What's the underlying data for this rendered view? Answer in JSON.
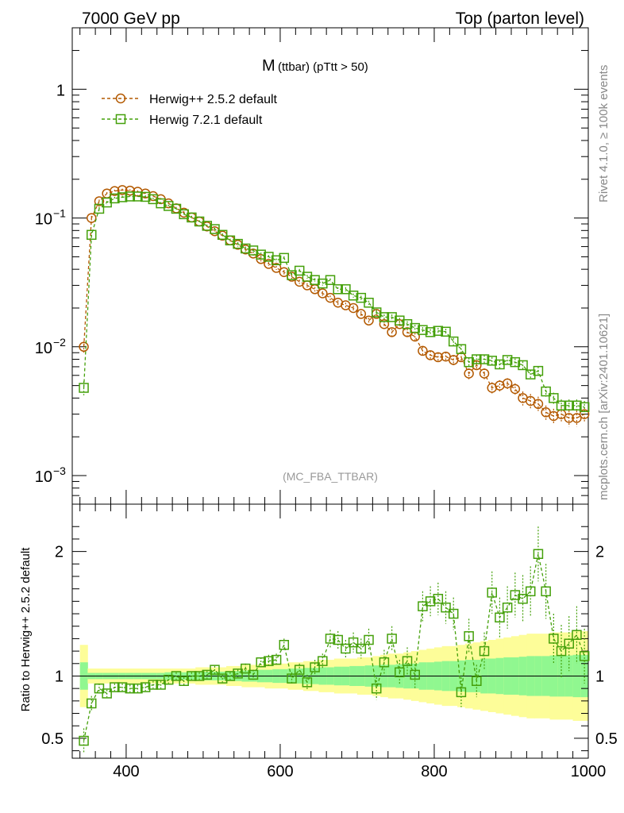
{
  "header": {
    "left_title": "7000 GeV pp",
    "right_title": "Top (parton level)"
  },
  "side_labels": {
    "rivet": "Rivet 4.1.0, ≥ 100k events",
    "mcplots": "mcplots.cern.ch [arXiv:2401.10621]"
  },
  "colors": {
    "herwig_pp": "#b35900",
    "herwig_7": "#44a00a",
    "band_yellow": "#fdfd99",
    "band_green": "#90f790"
  },
  "chart_data": [
    {
      "type": "line",
      "title": "M (ttbar) (pTtt > 50)",
      "title_main": "M",
      "title_sub": "(ttbar) (pTtt > 50)",
      "watermark": "(MC_FBA_TTBAR)",
      "yscale": "log",
      "xlim": [
        330,
        1000
      ],
      "ylim": [
        0.0006,
        3
      ],
      "y_ticks": [
        {
          "value": 0.001,
          "label": "10",
          "exp": "−3"
        },
        {
          "value": 0.01,
          "label": "10",
          "exp": "−2"
        },
        {
          "value": 0.1,
          "label": "10",
          "exp": "−1"
        },
        {
          "value": 1,
          "label": "1",
          "exp": ""
        }
      ],
      "legend": [
        "Herwig++ 2.5.2 default",
        "Herwig 7.2.1 default"
      ],
      "legend_position": "top-left",
      "x": [
        345,
        355,
        365,
        375,
        385,
        395,
        405,
        415,
        425,
        435,
        445,
        455,
        465,
        475,
        485,
        495,
        505,
        515,
        525,
        535,
        545,
        555,
        565,
        575,
        585,
        595,
        605,
        615,
        625,
        635,
        645,
        655,
        665,
        675,
        685,
        695,
        705,
        715,
        725,
        735,
        745,
        755,
        765,
        775,
        785,
        795,
        805,
        815,
        825,
        835,
        845,
        855,
        865,
        875,
        885,
        895,
        905,
        915,
        925,
        935,
        945,
        955,
        965,
        975,
        985,
        995
      ],
      "series": [
        {
          "name": "Herwig++ 2.5.2 default",
          "marker": "circle",
          "values": [
            0.01,
            0.1,
            0.135,
            0.155,
            0.162,
            0.165,
            0.163,
            0.16,
            0.155,
            0.148,
            0.14,
            0.13,
            0.119,
            0.11,
            0.101,
            0.094,
            0.086,
            0.079,
            0.073,
            0.067,
            0.062,
            0.057,
            0.053,
            0.048,
            0.044,
            0.041,
            0.038,
            0.035,
            0.032,
            0.03,
            0.028,
            0.026,
            0.024,
            0.022,
            0.021,
            0.02,
            0.018,
            0.016,
            0.018,
            0.015,
            0.013,
            0.015,
            0.013,
            0.012,
            0.0093,
            0.0086,
            0.0083,
            0.0084,
            0.0079,
            0.0083,
            0.0062,
            0.0072,
            0.0062,
            0.0048,
            0.005,
            0.0052,
            0.0047,
            0.004,
            0.0038,
            0.0036,
            0.0031,
            0.0029,
            0.003,
            0.0028,
            0.0028,
            0.003
          ],
          "errors": [
            0.001,
            0.004,
            0.004,
            0.004,
            0.004,
            0.004,
            0.004,
            0.004,
            0.004,
            0.004,
            0.003,
            0.003,
            0.003,
            0.003,
            0.003,
            0.002,
            0.002,
            0.002,
            0.002,
            0.002,
            0.002,
            0.002,
            0.002,
            0.002,
            0.0015,
            0.0015,
            0.0015,
            0.0013,
            0.0012,
            0.0012,
            0.0011,
            0.0011,
            0.001,
            0.001,
            0.001,
            0.0009,
            0.0009,
            0.0008,
            0.0009,
            0.0008,
            0.0008,
            0.0008,
            0.0008,
            0.0008,
            0.0007,
            0.0007,
            0.0007,
            0.0007,
            0.0007,
            0.0007,
            0.0006,
            0.0006,
            0.0006,
            0.0005,
            0.0005,
            0.0005,
            0.0005,
            0.0005,
            0.0005,
            0.0005,
            0.0004,
            0.0004,
            0.0004,
            0.0004,
            0.0004,
            0.0004
          ]
        },
        {
          "name": "Herwig 7.2.1 default",
          "marker": "square",
          "values": [
            0.0048,
            0.074,
            0.118,
            0.132,
            0.142,
            0.145,
            0.147,
            0.147,
            0.146,
            0.14,
            0.13,
            0.124,
            0.118,
            0.107,
            0.101,
            0.094,
            0.087,
            0.082,
            0.074,
            0.067,
            0.063,
            0.058,
            0.056,
            0.052,
            0.05,
            0.047,
            0.049,
            0.036,
            0.039,
            0.035,
            0.033,
            0.031,
            0.033,
            0.028,
            0.028,
            0.025,
            0.024,
            0.022,
            0.0185,
            0.017,
            0.017,
            0.016,
            0.015,
            0.014,
            0.0135,
            0.013,
            0.0133,
            0.0131,
            0.011,
            0.0096,
            0.0076,
            0.008,
            0.008,
            0.0078,
            0.0073,
            0.0079,
            0.0076,
            0.0072,
            0.0061,
            0.0065,
            0.0045,
            0.004,
            0.0035,
            0.0035,
            0.0035,
            0.0034
          ],
          "errors": [
            0.0006,
            0.004,
            0.004,
            0.004,
            0.004,
            0.004,
            0.004,
            0.004,
            0.004,
            0.004,
            0.003,
            0.003,
            0.003,
            0.003,
            0.003,
            0.002,
            0.002,
            0.002,
            0.002,
            0.002,
            0.002,
            0.002,
            0.002,
            0.002,
            0.0015,
            0.0015,
            0.0015,
            0.0013,
            0.0012,
            0.0012,
            0.0011,
            0.0011,
            0.001,
            0.001,
            0.001,
            0.0009,
            0.0009,
            0.0008,
            0.0009,
            0.0008,
            0.0008,
            0.0008,
            0.0008,
            0.0008,
            0.0007,
            0.0007,
            0.0007,
            0.0007,
            0.0007,
            0.0007,
            0.0006,
            0.0006,
            0.0006,
            0.0005,
            0.0005,
            0.0005,
            0.0005,
            0.0005,
            0.0005,
            0.0005,
            0.0004,
            0.0004,
            0.0004,
            0.0004,
            0.0004,
            0.0004
          ]
        }
      ]
    },
    {
      "type": "line",
      "ylabel": "Ratio to Herwig++ 2.5.2 default",
      "xlim": [
        330,
        1000
      ],
      "ylim": [
        0.34,
        2.38
      ],
      "y_ticks": [
        0.5,
        1,
        2
      ],
      "x_ticks": [
        400,
        600,
        800,
        1000
      ],
      "reference_line": 1,
      "x": [
        345,
        355,
        365,
        375,
        385,
        395,
        405,
        415,
        425,
        435,
        445,
        455,
        465,
        475,
        485,
        495,
        505,
        515,
        525,
        535,
        545,
        555,
        565,
        575,
        585,
        595,
        605,
        615,
        625,
        635,
        645,
        655,
        665,
        675,
        685,
        695,
        705,
        715,
        725,
        735,
        745,
        755,
        765,
        775,
        785,
        795,
        805,
        815,
        825,
        835,
        845,
        855,
        865,
        875,
        885,
        895,
        905,
        915,
        925,
        935,
        945,
        955,
        965,
        975,
        985,
        995
      ],
      "band_half_width_yellow": [
        0.25,
        0.06,
        0.06,
        0.06,
        0.06,
        0.06,
        0.06,
        0.06,
        0.06,
        0.06,
        0.06,
        0.06,
        0.06,
        0.06,
        0.06,
        0.07,
        0.07,
        0.07,
        0.07,
        0.08,
        0.08,
        0.09,
        0.09,
        0.09,
        0.1,
        0.1,
        0.1,
        0.11,
        0.11,
        0.12,
        0.12,
        0.13,
        0.13,
        0.14,
        0.14,
        0.14,
        0.15,
        0.15,
        0.16,
        0.17,
        0.18,
        0.18,
        0.19,
        0.2,
        0.21,
        0.22,
        0.23,
        0.24,
        0.24,
        0.25,
        0.26,
        0.27,
        0.28,
        0.29,
        0.3,
        0.31,
        0.32,
        0.33,
        0.34,
        0.34,
        0.34,
        0.35,
        0.35,
        0.35,
        0.36,
        0.36
      ],
      "band_half_width_green": [
        0.11,
        0.025,
        0.025,
        0.025,
        0.025,
        0.025,
        0.025,
        0.025,
        0.025,
        0.025,
        0.025,
        0.03,
        0.03,
        0.03,
        0.03,
        0.03,
        0.035,
        0.035,
        0.035,
        0.04,
        0.04,
        0.045,
        0.045,
        0.05,
        0.05,
        0.055,
        0.055,
        0.06,
        0.06,
        0.065,
        0.065,
        0.07,
        0.07,
        0.075,
        0.075,
        0.08,
        0.08,
        0.085,
        0.085,
        0.09,
        0.09,
        0.095,
        0.1,
        0.1,
        0.11,
        0.11,
        0.115,
        0.12,
        0.12,
        0.125,
        0.13,
        0.13,
        0.14,
        0.14,
        0.145,
        0.15,
        0.15,
        0.155,
        0.16,
        0.16,
        0.16,
        0.165,
        0.165,
        0.165,
        0.17,
        0.17
      ],
      "series": [
        {
          "name": "Herwig 7.2.1 default",
          "marker": "square",
          "values": [
            0.48,
            0.78,
            0.9,
            0.86,
            0.91,
            0.91,
            0.9,
            0.9,
            0.91,
            0.93,
            0.93,
            0.97,
            1.0,
            0.96,
            1.0,
            1.0,
            1.01,
            1.05,
            0.98,
            1.0,
            1.02,
            1.06,
            1.01,
            1.11,
            1.12,
            1.13,
            1.25,
            0.98,
            1.05,
            0.95,
            1.07,
            1.12,
            1.3,
            1.29,
            1.22,
            1.27,
            1.22,
            1.29,
            0.9,
            1.11,
            1.3,
            1.03,
            1.12,
            1.01,
            1.56,
            1.6,
            1.62,
            1.55,
            1.5,
            0.87,
            1.32,
            0.96,
            1.2,
            1.67,
            1.47,
            1.55,
            1.65,
            1.62,
            1.68,
            1.98,
            1.68,
            1.3,
            1.2,
            1.26,
            1.33,
            1.16
          ],
          "errors": [
            0.1,
            0.06,
            0.04,
            0.03,
            0.03,
            0.03,
            0.03,
            0.03,
            0.03,
            0.03,
            0.03,
            0.03,
            0.03,
            0.03,
            0.03,
            0.03,
            0.03,
            0.03,
            0.03,
            0.03,
            0.03,
            0.04,
            0.04,
            0.04,
            0.05,
            0.05,
            0.05,
            0.05,
            0.05,
            0.06,
            0.06,
            0.06,
            0.07,
            0.07,
            0.07,
            0.08,
            0.08,
            0.09,
            0.09,
            0.1,
            0.1,
            0.1,
            0.11,
            0.11,
            0.12,
            0.12,
            0.13,
            0.13,
            0.13,
            0.12,
            0.14,
            0.13,
            0.15,
            0.17,
            0.16,
            0.17,
            0.18,
            0.19,
            0.2,
            0.22,
            0.22,
            0.2,
            0.21,
            0.22,
            0.23,
            0.22
          ]
        }
      ]
    }
  ]
}
